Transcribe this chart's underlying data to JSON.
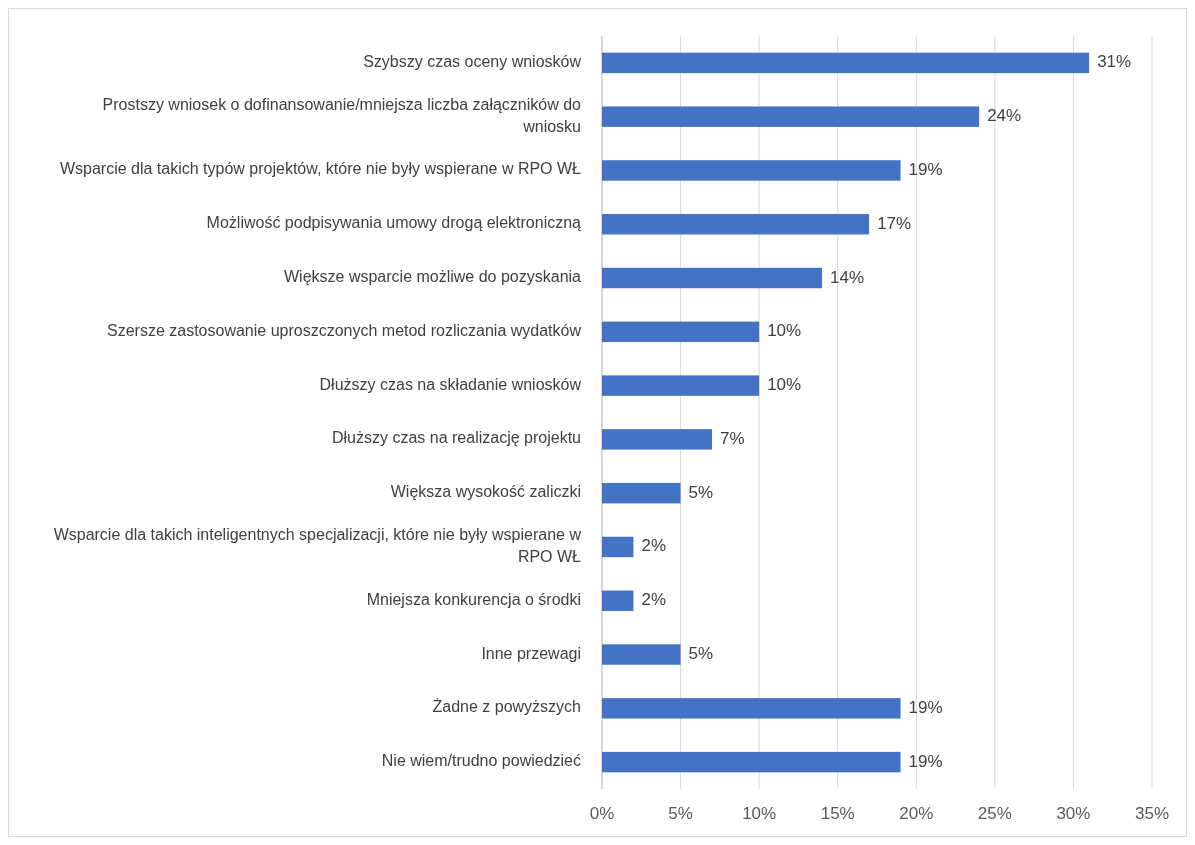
{
  "chart_data": {
    "type": "bar",
    "orientation": "horizontal",
    "categories": [
      "Szybszy czas oceny wniosków",
      "Prostszy wniosek o dofinansowanie/mniejsza liczba załączników do wniosku",
      "Wsparcie dla takich typów projektów, które nie były wspierane w RPO WŁ",
      "Możliwość podpisywania umowy  drogą elektroniczną",
      "Większe wsparcie możliwe do pozyskania",
      "Szersze zastosowanie uproszczonych metod rozliczania wydatków",
      "Dłuższy czas na składanie wniosków",
      "Dłuższy czas na realizację projektu",
      "Większa wysokość zaliczki",
      "Wsparcie dla takich inteligentnych specjalizacji, które nie były wspierane w RPO WŁ",
      "Mniejsza konkurencja o środki",
      "Inne przewagi",
      "Żadne z powyższych",
      "Nie wiem/trudno powiedzieć"
    ],
    "values": [
      31,
      24,
      19,
      17,
      14,
      10,
      10,
      7,
      5,
      2,
      2,
      5,
      19,
      19
    ],
    "value_labels": [
      "31%",
      "24%",
      "19%",
      "17%",
      "14%",
      "10%",
      "10%",
      "7%",
      "5%",
      "2%",
      "2%",
      "5%",
      "19%",
      "19%"
    ],
    "color": "#4472c4",
    "xlim": [
      0,
      35
    ],
    "xticks": [
      {
        "value": 0,
        "label": "0%"
      },
      {
        "value": 5,
        "label": "5%"
      },
      {
        "value": 10,
        "label": "10%"
      },
      {
        "value": 15,
        "label": "15%"
      },
      {
        "value": 20,
        "label": "20%"
      },
      {
        "value": 25,
        "label": "25%"
      },
      {
        "value": 30,
        "label": "30%"
      },
      {
        "value": 35,
        "label": "35%"
      }
    ],
    "grid": "x"
  }
}
